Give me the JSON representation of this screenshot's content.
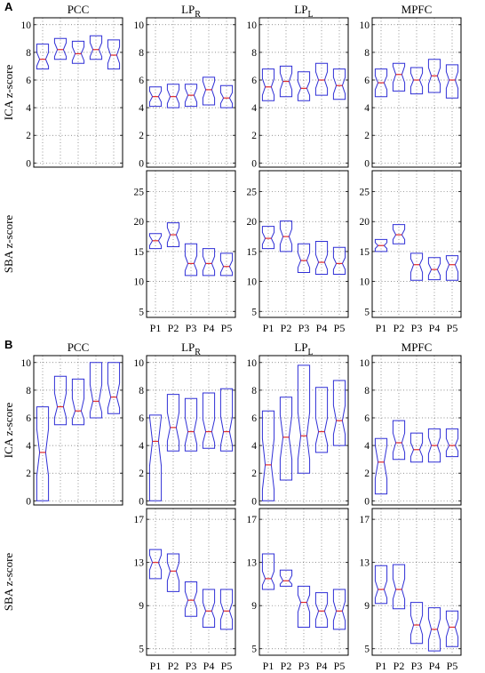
{
  "figure": {
    "panel_labels": [
      "A",
      "B"
    ]
  },
  "chart_data": [
    {
      "panel": "A",
      "row": "ICA",
      "type": "boxplot",
      "notched": true,
      "ylabel": "ICA z-score",
      "ylim": [
        -0.3,
        10.5
      ],
      "yticks": [
        0,
        2,
        4,
        6,
        8,
        10
      ],
      "grid": "dotted",
      "columns": [
        {
          "title": "PCC",
          "title_sub": "",
          "show_yticks": true,
          "boxes": [
            {
              "x": "P1",
              "q1": 6.8,
              "median": 7.5,
              "q3": 8.6,
              "notch_lo": 7.0,
              "notch_hi": 8.0
            },
            {
              "x": "P2",
              "q1": 7.5,
              "median": 8.2,
              "q3": 9.0,
              "notch_lo": 7.7,
              "notch_hi": 8.7
            },
            {
              "x": "P3",
              "q1": 7.2,
              "median": 7.9,
              "q3": 8.8,
              "notch_lo": 7.4,
              "notch_hi": 8.4
            },
            {
              "x": "P4",
              "q1": 7.5,
              "median": 8.2,
              "q3": 9.2,
              "notch_lo": 7.7,
              "notch_hi": 8.7
            },
            {
              "x": "P5",
              "q1": 6.8,
              "median": 7.8,
              "q3": 8.9,
              "notch_lo": 7.2,
              "notch_hi": 8.4
            }
          ]
        },
        {
          "title": "LP",
          "title_sub": "R",
          "show_yticks": true,
          "boxes": [
            {
              "x": "P1",
              "q1": 4.1,
              "median": 4.8,
              "q3": 5.5,
              "notch_lo": 4.4,
              "notch_hi": 5.2
            },
            {
              "x": "P2",
              "q1": 4.0,
              "median": 4.8,
              "q3": 5.7,
              "notch_lo": 4.3,
              "notch_hi": 5.3
            },
            {
              "x": "P3",
              "q1": 4.1,
              "median": 4.9,
              "q3": 5.7,
              "notch_lo": 4.4,
              "notch_hi": 5.4
            },
            {
              "x": "P4",
              "q1": 4.2,
              "median": 5.3,
              "q3": 6.2,
              "notch_lo": 4.7,
              "notch_hi": 5.9
            },
            {
              "x": "P5",
              "q1": 4.0,
              "median": 4.7,
              "q3": 5.6,
              "notch_lo": 4.3,
              "notch_hi": 5.1
            }
          ]
        },
        {
          "title": "LP",
          "title_sub": "L",
          "show_yticks": true,
          "boxes": [
            {
              "x": "P1",
              "q1": 4.5,
              "median": 5.5,
              "q3": 6.8,
              "notch_lo": 4.9,
              "notch_hi": 6.1
            },
            {
              "x": "P2",
              "q1": 4.8,
              "median": 5.9,
              "q3": 7.0,
              "notch_lo": 5.3,
              "notch_hi": 6.5
            },
            {
              "x": "P3",
              "q1": 4.5,
              "median": 5.4,
              "q3": 6.6,
              "notch_lo": 4.9,
              "notch_hi": 5.9
            },
            {
              "x": "P4",
              "q1": 4.9,
              "median": 6.0,
              "q3": 7.2,
              "notch_lo": 5.4,
              "notch_hi": 6.6
            },
            {
              "x": "P5",
              "q1": 4.6,
              "median": 5.6,
              "q3": 6.8,
              "notch_lo": 5.0,
              "notch_hi": 6.2
            }
          ]
        },
        {
          "title": "MPFC",
          "title_sub": "",
          "show_yticks": true,
          "boxes": [
            {
              "x": "P1",
              "q1": 4.8,
              "median": 5.8,
              "q3": 6.8,
              "notch_lo": 5.3,
              "notch_hi": 6.3
            },
            {
              "x": "P2",
              "q1": 5.2,
              "median": 6.4,
              "q3": 7.2,
              "notch_lo": 5.8,
              "notch_hi": 7.0
            },
            {
              "x": "P3",
              "q1": 5.0,
              "median": 6.0,
              "q3": 6.9,
              "notch_lo": 5.5,
              "notch_hi": 6.5
            },
            {
              "x": "P4",
              "q1": 5.1,
              "median": 6.3,
              "q3": 7.5,
              "notch_lo": 5.7,
              "notch_hi": 6.9
            },
            {
              "x": "P5",
              "q1": 4.7,
              "median": 6.0,
              "q3": 7.1,
              "notch_lo": 5.4,
              "notch_hi": 6.6
            }
          ]
        }
      ]
    },
    {
      "panel": "A",
      "row": "SBA",
      "type": "boxplot",
      "notched": true,
      "ylabel": "SBA z-score",
      "ylim": [
        4,
        28.5
      ],
      "yticks": [
        5,
        10,
        15,
        20,
        25
      ],
      "grid": "dotted",
      "columns": [
        {
          "title": "PCC",
          "title_sub": "",
          "empty": true,
          "boxes": []
        },
        {
          "title": "LP",
          "title_sub": "R",
          "show_yticks": true,
          "boxes": [
            {
              "x": "P1",
              "q1": 15.5,
              "median": 16.8,
              "q3": 18.0,
              "notch_lo": 16.0,
              "notch_hi": 17.6
            },
            {
              "x": "P2",
              "q1": 15.8,
              "median": 17.8,
              "q3": 19.8,
              "notch_lo": 16.5,
              "notch_hi": 19.0
            },
            {
              "x": "P3",
              "q1": 11.0,
              "median": 13.0,
              "q3": 16.3,
              "notch_lo": 11.8,
              "notch_hi": 14.3
            },
            {
              "x": "P4",
              "q1": 11.0,
              "median": 13.0,
              "q3": 15.5,
              "notch_lo": 11.8,
              "notch_hi": 14.2
            },
            {
              "x": "P5",
              "q1": 11.0,
              "median": 12.5,
              "q3": 14.7,
              "notch_lo": 11.5,
              "notch_hi": 13.5
            }
          ]
        },
        {
          "title": "LP",
          "title_sub": "L",
          "show_yticks": true,
          "boxes": [
            {
              "x": "P1",
              "q1": 15.5,
              "median": 17.2,
              "q3": 19.2,
              "notch_lo": 16.2,
              "notch_hi": 18.2
            },
            {
              "x": "P2",
              "q1": 15.0,
              "median": 17.5,
              "q3": 20.1,
              "notch_lo": 16.2,
              "notch_hi": 18.8
            },
            {
              "x": "P3",
              "q1": 11.5,
              "median": 13.5,
              "q3": 16.3,
              "notch_lo": 12.3,
              "notch_hi": 14.8
            },
            {
              "x": "P4",
              "q1": 11.2,
              "median": 13.2,
              "q3": 16.7,
              "notch_lo": 12.0,
              "notch_hi": 14.5
            },
            {
              "x": "P5",
              "q1": 11.2,
              "median": 13.0,
              "q3": 15.7,
              "notch_lo": 12.0,
              "notch_hi": 14.0
            }
          ]
        },
        {
          "title": "MPFC",
          "title_sub": "",
          "show_yticks": true,
          "boxes": [
            {
              "x": "P1",
              "q1": 15.0,
              "median": 16.0,
              "q3": 17.0,
              "notch_lo": 15.5,
              "notch_hi": 16.5
            },
            {
              "x": "P2",
              "q1": 16.3,
              "median": 17.8,
              "q3": 19.5,
              "notch_lo": 17.0,
              "notch_hi": 18.7
            },
            {
              "x": "P3",
              "q1": 10.2,
              "median": 12.8,
              "q3": 14.7,
              "notch_lo": 11.5,
              "notch_hi": 13.8
            },
            {
              "x": "P4",
              "q1": 10.3,
              "median": 12.0,
              "q3": 14.0,
              "notch_lo": 11.0,
              "notch_hi": 13.0
            },
            {
              "x": "P5",
              "q1": 10.2,
              "median": 12.8,
              "q3": 14.3,
              "notch_lo": 11.6,
              "notch_hi": 13.8
            }
          ]
        }
      ],
      "x_tick_labels": [
        "P1",
        "P2",
        "P3",
        "P4",
        "P5"
      ]
    },
    {
      "panel": "B",
      "row": "ICA",
      "type": "boxplot",
      "notched": true,
      "ylabel": "ICA z-score",
      "ylim": [
        -0.3,
        10.5
      ],
      "yticks": [
        0,
        2,
        4,
        6,
        8,
        10
      ],
      "grid": "dotted",
      "columns": [
        {
          "title": "PCC",
          "title_sub": "",
          "show_yticks": true,
          "boxes": [
            {
              "x": "P1",
              "q1": 0.0,
              "median": 3.5,
              "q3": 6.8,
              "notch_lo": 1.8,
              "notch_hi": 5.2
            },
            {
              "x": "P2",
              "q1": 5.5,
              "median": 6.8,
              "q3": 9.0,
              "notch_lo": 6.0,
              "notch_hi": 7.8
            },
            {
              "x": "P3",
              "q1": 5.5,
              "median": 6.5,
              "q3": 8.8,
              "notch_lo": 5.9,
              "notch_hi": 7.4
            },
            {
              "x": "P4",
              "q1": 6.0,
              "median": 7.2,
              "q3": 10.0,
              "notch_lo": 6.4,
              "notch_hi": 8.4
            },
            {
              "x": "P5",
              "q1": 6.3,
              "median": 7.5,
              "q3": 10.0,
              "notch_lo": 6.7,
              "notch_hi": 8.5
            }
          ]
        },
        {
          "title": "LP",
          "title_sub": "R",
          "show_yticks": true,
          "boxes": [
            {
              "x": "P1",
              "q1": 0.0,
              "median": 4.3,
              "q3": 6.2,
              "notch_lo": 2.5,
              "notch_hi": 6.1
            },
            {
              "x": "P2",
              "q1": 3.6,
              "median": 5.3,
              "q3": 7.7,
              "notch_lo": 4.3,
              "notch_hi": 6.4
            },
            {
              "x": "P3",
              "q1": 3.6,
              "median": 5.0,
              "q3": 7.4,
              "notch_lo": 4.1,
              "notch_hi": 6.0
            },
            {
              "x": "P4",
              "q1": 3.8,
              "median": 5.0,
              "q3": 7.8,
              "notch_lo": 4.2,
              "notch_hi": 5.9
            },
            {
              "x": "P5",
              "q1": 3.6,
              "median": 5.0,
              "q3": 8.1,
              "notch_lo": 4.0,
              "notch_hi": 6.1
            }
          ]
        },
        {
          "title": "LP",
          "title_sub": "L",
          "show_yticks": true,
          "boxes": [
            {
              "x": "P1",
              "q1": 0.0,
              "median": 2.6,
              "q3": 6.5,
              "notch_lo": 0.8,
              "notch_hi": 4.5
            },
            {
              "x": "P2",
              "q1": 1.5,
              "median": 4.6,
              "q3": 7.5,
              "notch_lo": 3.0,
              "notch_hi": 6.2
            },
            {
              "x": "P3",
              "q1": 2.0,
              "median": 4.7,
              "q3": 9.8,
              "notch_lo": 3.0,
              "notch_hi": 6.4
            },
            {
              "x": "P4",
              "q1": 3.5,
              "median": 5.0,
              "q3": 8.2,
              "notch_lo": 4.1,
              "notch_hi": 6.0
            },
            {
              "x": "P5",
              "q1": 4.0,
              "median": 5.8,
              "q3": 8.7,
              "notch_lo": 4.8,
              "notch_hi": 6.9
            }
          ]
        },
        {
          "title": "MPFC",
          "title_sub": "",
          "show_yticks": true,
          "boxes": [
            {
              "x": "P1",
              "q1": 0.5,
              "median": 2.8,
              "q3": 4.5,
              "notch_lo": 1.6,
              "notch_hi": 4.0
            },
            {
              "x": "P2",
              "q1": 3.0,
              "median": 4.2,
              "q3": 5.8,
              "notch_lo": 3.5,
              "notch_hi": 4.9
            },
            {
              "x": "P3",
              "q1": 2.8,
              "median": 3.7,
              "q3": 4.9,
              "notch_lo": 3.2,
              "notch_hi": 4.2
            },
            {
              "x": "P4",
              "q1": 2.8,
              "median": 4.0,
              "q3": 5.2,
              "notch_lo": 3.4,
              "notch_hi": 4.6
            },
            {
              "x": "P5",
              "q1": 3.2,
              "median": 4.0,
              "q3": 5.2,
              "notch_lo": 3.6,
              "notch_hi": 4.5
            }
          ]
        }
      ]
    },
    {
      "panel": "B",
      "row": "SBA",
      "type": "boxplot",
      "notched": true,
      "ylabel": "SBA z-score",
      "ylim": [
        4.4,
        18
      ],
      "yticks": [
        5,
        9,
        13,
        17
      ],
      "grid": "dotted",
      "columns": [
        {
          "title": "PCC",
          "title_sub": "",
          "empty": true,
          "boxes": []
        },
        {
          "title": "LP",
          "title_sub": "R",
          "show_yticks": true,
          "boxes": [
            {
              "x": "P1",
              "q1": 11.5,
              "median": 13.0,
              "q3": 14.2,
              "notch_lo": 12.3,
              "notch_hi": 13.7
            },
            {
              "x": "P2",
              "q1": 10.3,
              "median": 12.2,
              "q3": 13.8,
              "notch_lo": 11.3,
              "notch_hi": 13.0
            },
            {
              "x": "P3",
              "q1": 8.0,
              "median": 9.5,
              "q3": 11.2,
              "notch_lo": 8.7,
              "notch_hi": 10.3
            },
            {
              "x": "P4",
              "q1": 7.0,
              "median": 8.5,
              "q3": 10.5,
              "notch_lo": 7.8,
              "notch_hi": 9.3
            },
            {
              "x": "P5",
              "q1": 6.8,
              "median": 8.5,
              "q3": 10.5,
              "notch_lo": 7.7,
              "notch_hi": 9.3
            }
          ]
        },
        {
          "title": "LP",
          "title_sub": "L",
          "show_yticks": true,
          "boxes": [
            {
              "x": "P1",
              "q1": 10.5,
              "median": 11.5,
              "q3": 13.8,
              "notch_lo": 10.9,
              "notch_hi": 12.2
            },
            {
              "x": "P2",
              "q1": 10.8,
              "median": 11.3,
              "q3": 12.3,
              "notch_lo": 11.0,
              "notch_hi": 11.8
            },
            {
              "x": "P3",
              "q1": 7.0,
              "median": 9.3,
              "q3": 10.8,
              "notch_lo": 8.4,
              "notch_hi": 10.0
            },
            {
              "x": "P4",
              "q1": 7.0,
              "median": 8.5,
              "q3": 10.2,
              "notch_lo": 7.7,
              "notch_hi": 9.2
            },
            {
              "x": "P5",
              "q1": 6.8,
              "median": 8.5,
              "q3": 10.5,
              "notch_lo": 7.6,
              "notch_hi": 9.4
            }
          ]
        },
        {
          "title": "MPFC",
          "title_sub": "",
          "show_yticks": true,
          "boxes": [
            {
              "x": "P1",
              "q1": 9.2,
              "median": 10.5,
              "q3": 12.7,
              "notch_lo": 9.7,
              "notch_hi": 11.3
            },
            {
              "x": "P2",
              "q1": 8.7,
              "median": 10.5,
              "q3": 12.8,
              "notch_lo": 9.6,
              "notch_hi": 11.5
            },
            {
              "x": "P3",
              "q1": 5.5,
              "median": 7.2,
              "q3": 9.3,
              "notch_lo": 6.3,
              "notch_hi": 8.1
            },
            {
              "x": "P4",
              "q1": 4.8,
              "median": 6.8,
              "q3": 8.8,
              "notch_lo": 5.8,
              "notch_hi": 7.8
            },
            {
              "x": "P5",
              "q1": 5.2,
              "median": 7.0,
              "q3": 8.5,
              "notch_lo": 6.1,
              "notch_hi": 7.8
            }
          ]
        }
      ],
      "x_tick_labels": [
        "P1",
        "P2",
        "P3",
        "P4",
        "P5"
      ]
    }
  ],
  "colors": {
    "box": "#2f2fd6",
    "median": "#e0282a",
    "axis": "#000000",
    "grid": "#6b6b6b"
  }
}
